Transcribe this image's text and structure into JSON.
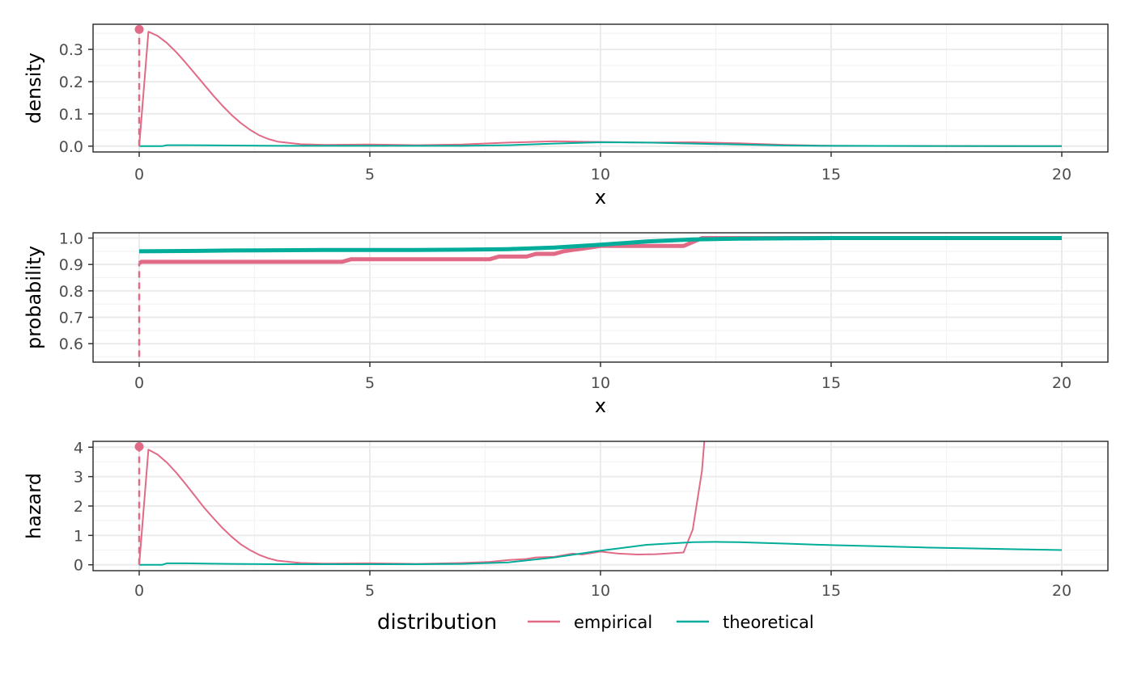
{
  "colors": {
    "empirical": "#E16A86",
    "theoretical": "#00AD9A",
    "grid_major": "#EBEBEB",
    "grid_minor": "#F3F3F3",
    "panel_border": "#333333",
    "tick_text": "#4D4D4D"
  },
  "legend": {
    "title": "distribution",
    "items": [
      {
        "key": "empirical",
        "label": "empirical"
      },
      {
        "key": "theoretical",
        "label": "theoretical"
      }
    ],
    "placement": "bottom"
  },
  "chart_data": [
    {
      "id": "density",
      "type": "line",
      "xlabel": "x",
      "ylabel": "density",
      "xlim": [
        -1,
        21
      ],
      "ylim": [
        -0.018,
        0.378
      ],
      "xticks": [
        0,
        5,
        10,
        15,
        20
      ],
      "yticks": [
        0.0,
        0.1,
        0.2,
        0.3
      ],
      "ytick_labels": [
        "0.0",
        "0.1",
        "0.2",
        "0.3"
      ],
      "grid": true,
      "point_mass": {
        "series": "empirical",
        "x": 0,
        "y": 0.362
      },
      "series": [
        {
          "name": "empirical",
          "width": 2,
          "x": [
            0,
            0.2,
            0.4,
            0.6,
            0.8,
            1.0,
            1.2,
            1.4,
            1.6,
            1.8,
            2.0,
            2.2,
            2.4,
            2.6,
            2.8,
            3.0,
            3.5,
            4.0,
            5.0,
            6.0,
            7.0,
            8.0,
            9.0,
            10.0,
            11.0,
            12.0,
            13.0,
            14.0,
            15.0,
            20.0
          ],
          "y": [
            0.0,
            0.355,
            0.342,
            0.32,
            0.292,
            0.26,
            0.226,
            0.192,
            0.158,
            0.126,
            0.097,
            0.072,
            0.051,
            0.034,
            0.022,
            0.014,
            0.006,
            0.004,
            0.005,
            0.003,
            0.005,
            0.011,
            0.015,
            0.013,
            0.011,
            0.012,
            0.009,
            0.004,
            0.001,
            0.0
          ]
        },
        {
          "name": "theoretical",
          "width": 2,
          "x": [
            0,
            0.3,
            0.5,
            0.6,
            1.0,
            2.0,
            3.0,
            4.0,
            5.0,
            6.0,
            7.0,
            8.0,
            9.0,
            10.0,
            11.0,
            12.0,
            13.0,
            14.0,
            15.0,
            20.0
          ],
          "y": [
            0.0,
            0.0,
            0.0,
            0.003,
            0.003,
            0.002,
            0.001,
            0.001,
            0.001,
            0.001,
            0.001,
            0.003,
            0.008,
            0.012,
            0.011,
            0.008,
            0.005,
            0.002,
            0.001,
            0.0
          ]
        }
      ]
    },
    {
      "id": "probability",
      "type": "line",
      "xlabel": "x",
      "ylabel": "probability",
      "xlim": [
        -1,
        21
      ],
      "ylim": [
        0.53,
        1.02
      ],
      "xticks": [
        0,
        5,
        10,
        15,
        20
      ],
      "yticks": [
        0.6,
        0.7,
        0.8,
        0.9,
        1.0
      ],
      "ytick_labels": [
        "0.6",
        "0.7",
        "0.8",
        "0.9",
        "1.0"
      ],
      "grid": true,
      "point_mass": {
        "series": "empirical",
        "x": 0,
        "y": 0.55
      },
      "series": [
        {
          "name": "empirical",
          "width": 5,
          "x": [
            0,
            0.05,
            4.4,
            4.6,
            7.6,
            7.8,
            8.4,
            8.6,
            9.0,
            9.2,
            9.4,
            9.6,
            9.8,
            10.0,
            11.8,
            12.0,
            12.2,
            20.0
          ],
          "y": [
            0.905,
            0.91,
            0.91,
            0.92,
            0.92,
            0.93,
            0.93,
            0.94,
            0.94,
            0.95,
            0.955,
            0.96,
            0.965,
            0.97,
            0.97,
            0.985,
            1.0,
            1.0
          ]
        },
        {
          "name": "theoretical",
          "width": 5,
          "x": [
            0,
            1,
            2,
            3,
            4,
            5,
            6,
            7,
            8,
            9,
            10,
            11,
            12,
            13,
            14,
            15,
            20
          ],
          "y": [
            0.95,
            0.951,
            0.953,
            0.954,
            0.955,
            0.955,
            0.955,
            0.956,
            0.958,
            0.964,
            0.975,
            0.987,
            0.995,
            0.998,
            0.999,
            1.0,
            1.0
          ]
        }
      ]
    },
    {
      "id": "hazard",
      "type": "line",
      "xlabel": "",
      "ylabel": "hazard",
      "xlim": [
        -1,
        21
      ],
      "ylim": [
        -0.2,
        4.2
      ],
      "xticks": [
        0,
        5,
        10,
        15,
        20
      ],
      "yticks": [
        0,
        1,
        2,
        3,
        4
      ],
      "ytick_labels": [
        "0",
        "1",
        "2",
        "3",
        "4"
      ],
      "grid": true,
      "point_mass": {
        "series": "empirical",
        "x": 0,
        "y": 4.02
      },
      "series": [
        {
          "name": "empirical",
          "width": 2,
          "x": [
            0,
            0.2,
            0.4,
            0.6,
            0.8,
            1.0,
            1.2,
            1.4,
            1.6,
            1.8,
            2.0,
            2.2,
            2.4,
            2.6,
            2.8,
            3.0,
            3.5,
            4.0,
            5.0,
            6.0,
            7.0,
            7.6,
            8.0,
            8.4,
            8.6,
            9.0,
            9.4,
            9.6,
            9.8,
            10.0,
            10.4,
            10.8,
            11.2,
            11.8,
            12.0,
            12.2,
            12.25
          ],
          "y": [
            0.0,
            3.92,
            3.75,
            3.48,
            3.14,
            2.76,
            2.36,
            1.96,
            1.6,
            1.26,
            0.96,
            0.7,
            0.5,
            0.34,
            0.22,
            0.14,
            0.06,
            0.04,
            0.05,
            0.03,
            0.06,
            0.1,
            0.16,
            0.2,
            0.25,
            0.27,
            0.38,
            0.35,
            0.4,
            0.45,
            0.38,
            0.35,
            0.36,
            0.42,
            1.2,
            3.2,
            4.2
          ]
        },
        {
          "name": "theoretical",
          "width": 2,
          "x": [
            0,
            0.3,
            0.5,
            0.6,
            1.0,
            2.0,
            3.0,
            4.0,
            5.0,
            6.0,
            7.0,
            8.0,
            9.0,
            10.0,
            11.0,
            12.0,
            12.5,
            13.0,
            14.0,
            15.0,
            16.0,
            17.0,
            18.0,
            19.0,
            20.0
          ],
          "y": [
            0.0,
            0.0,
            0.0,
            0.05,
            0.05,
            0.03,
            0.02,
            0.02,
            0.02,
            0.02,
            0.03,
            0.08,
            0.25,
            0.48,
            0.68,
            0.77,
            0.78,
            0.77,
            0.72,
            0.67,
            0.63,
            0.59,
            0.56,
            0.53,
            0.5
          ]
        }
      ]
    }
  ]
}
